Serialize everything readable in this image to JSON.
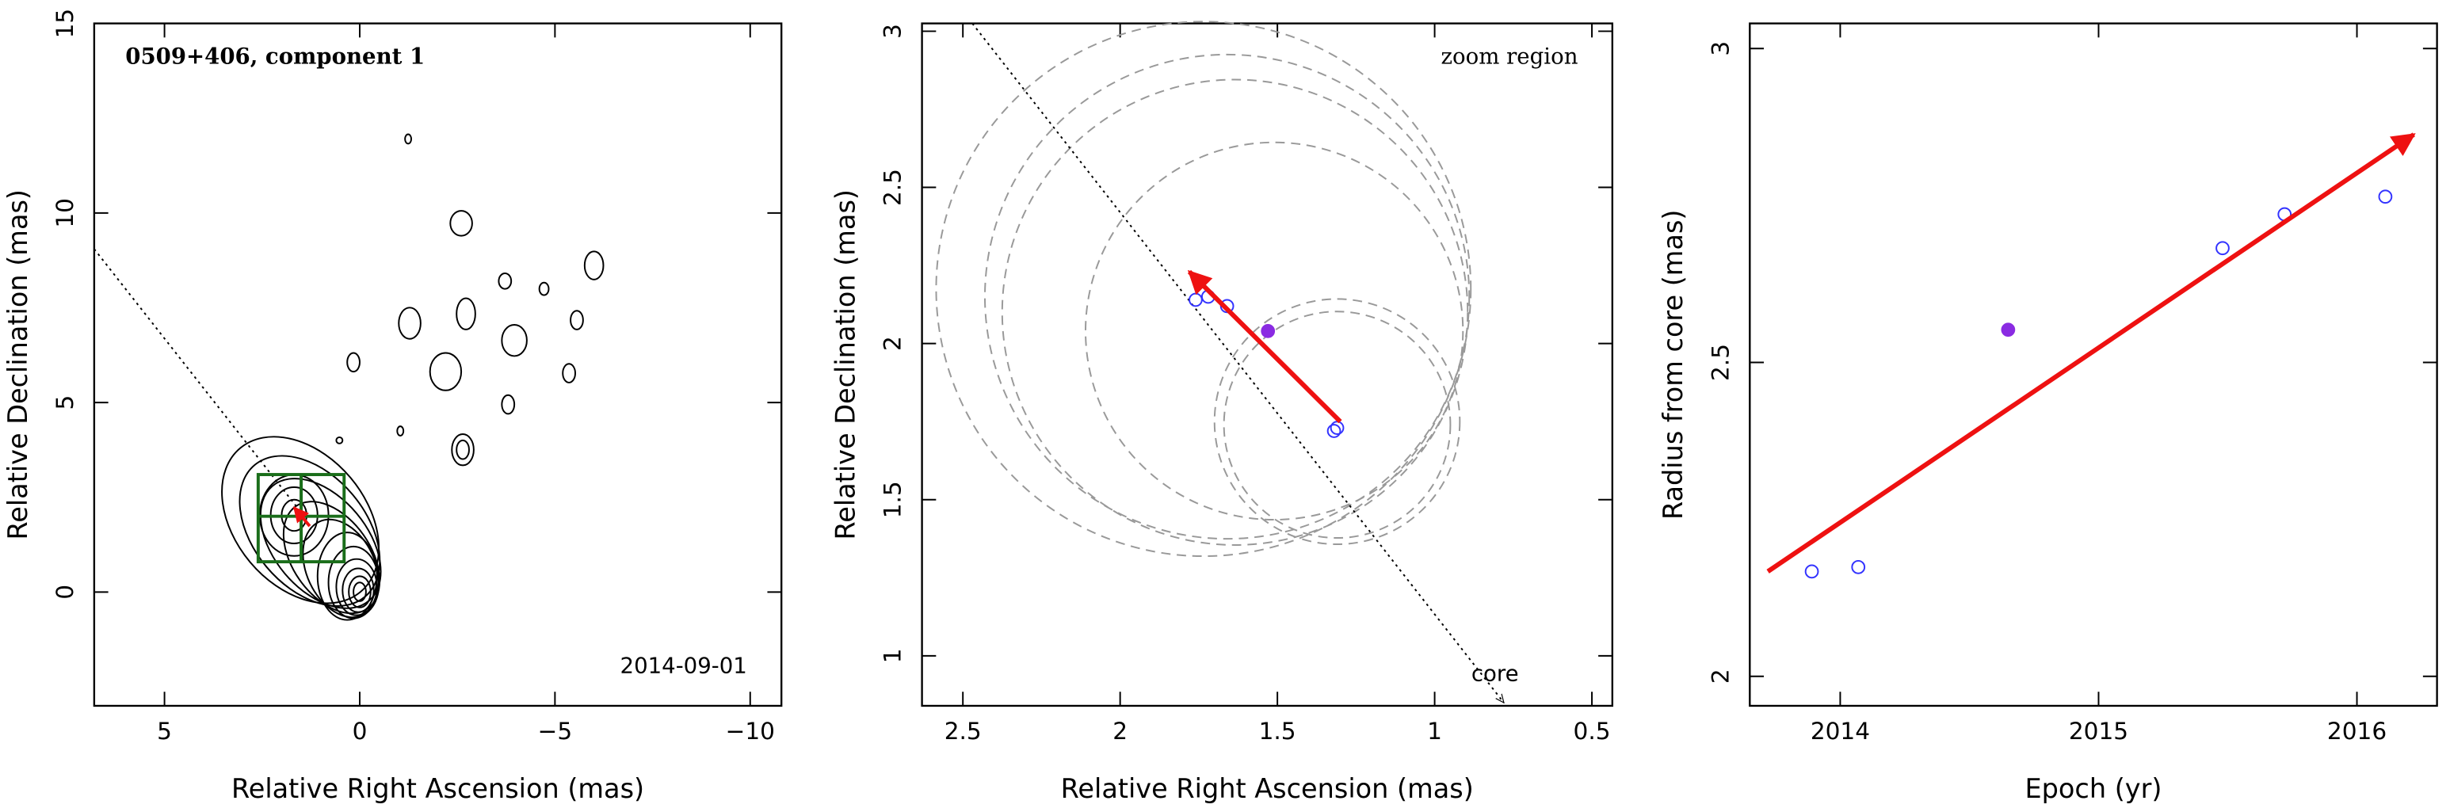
{
  "chart_data": [
    {
      "type": "contour",
      "xlabel": "Relative Right Ascension (mas)",
      "ylabel": "Relative Declination (mas)",
      "annotation": "0509+406, component 1",
      "date": "2014-09-01",
      "xlim": [
        6.8,
        -10.8
      ],
      "ylim": [
        -3,
        15
      ],
      "xticks": [
        5,
        0,
        {
          "value": -5,
          "label": "−5"
        },
        {
          "value": -10,
          "label": "−10"
        }
      ],
      "yticks": [
        0,
        5,
        10,
        15
      ],
      "line": {
        "x": [
          6.8,
          1.5
        ],
        "y": [
          9.05,
          2.1
        ]
      },
      "box": {
        "x": [
          2.6,
          0.4
        ],
        "y": [
          0.8,
          3.1
        ],
        "cross": [
          1.5,
          2.0
        ],
        "color": "#1a6e1a"
      },
      "arrow": {
        "x": [
          1.28,
          1.68
        ],
        "y": [
          1.74,
          2.23
        ],
        "color": "#ee1111"
      }
    },
    {
      "type": "scatter",
      "xlabel": "Relative Right Ascension (mas)",
      "ylabel": "Relative Declination (mas)",
      "annotation": "zoom region",
      "core_label": "core",
      "xlim": [
        2.63,
        0.435
      ],
      "ylim": [
        0.84,
        3.025
      ],
      "xticks": [
        2.5,
        2,
        1.5,
        1,
        0.5
      ],
      "yticks": [
        1,
        1.5,
        2,
        2.5,
        3
      ],
      "series": [
        {
          "color": "#3333ff",
          "filled": false,
          "x": [
            1.76,
            1.72,
            1.66,
            1.31,
            1.32
          ],
          "values": [
            2.14,
            2.15,
            2.12,
            1.73,
            1.72
          ]
        },
        {
          "color": "#8a2be2",
          "filled": true,
          "x": [
            1.53
          ],
          "values": [
            2.04
          ]
        }
      ],
      "circles": {
        "x": [
          1.735,
          1.66,
          1.635,
          1.51,
          1.31,
          1.31
        ],
        "y": [
          2.175,
          2.15,
          2.1,
          2.04,
          1.75,
          1.74
        ],
        "r": [
          0.85,
          0.77,
          0.74,
          0.6,
          0.39,
          0.36
        ]
      },
      "line": {
        "x": [
          2.47,
          0.78
        ],
        "y": [
          3.025,
          0.85
        ]
      },
      "arrow": {
        "x": [
          1.3,
          1.78
        ],
        "y": [
          1.75,
          2.23
        ],
        "color": "#ee1111"
      }
    },
    {
      "type": "scatter",
      "xlabel": "Epoch (yr)",
      "ylabel": "Radius from core (mas)",
      "xlim": [
        2013.65,
        2016.31
      ],
      "ylim": [
        1.953,
        3.04
      ],
      "xticks": [
        2014,
        2015,
        2016
      ],
      "yticks": [
        2,
        2.5,
        3
      ],
      "series": [
        {
          "color": "#3333ff",
          "filled": false,
          "x": [
            2013.89,
            2014.07,
            2015.48,
            2015.72,
            2016.11
          ],
          "values": [
            2.167,
            2.174,
            2.682,
            2.736,
            2.764
          ]
        },
        {
          "color": "#8a2be2",
          "filled": true,
          "x": [
            2014.65
          ],
          "values": [
            2.552
          ]
        }
      ],
      "arrow": {
        "x": [
          2013.72,
          2016.22
        ],
        "y": [
          2.167,
          2.863
        ],
        "color": "#ee1111"
      }
    }
  ]
}
